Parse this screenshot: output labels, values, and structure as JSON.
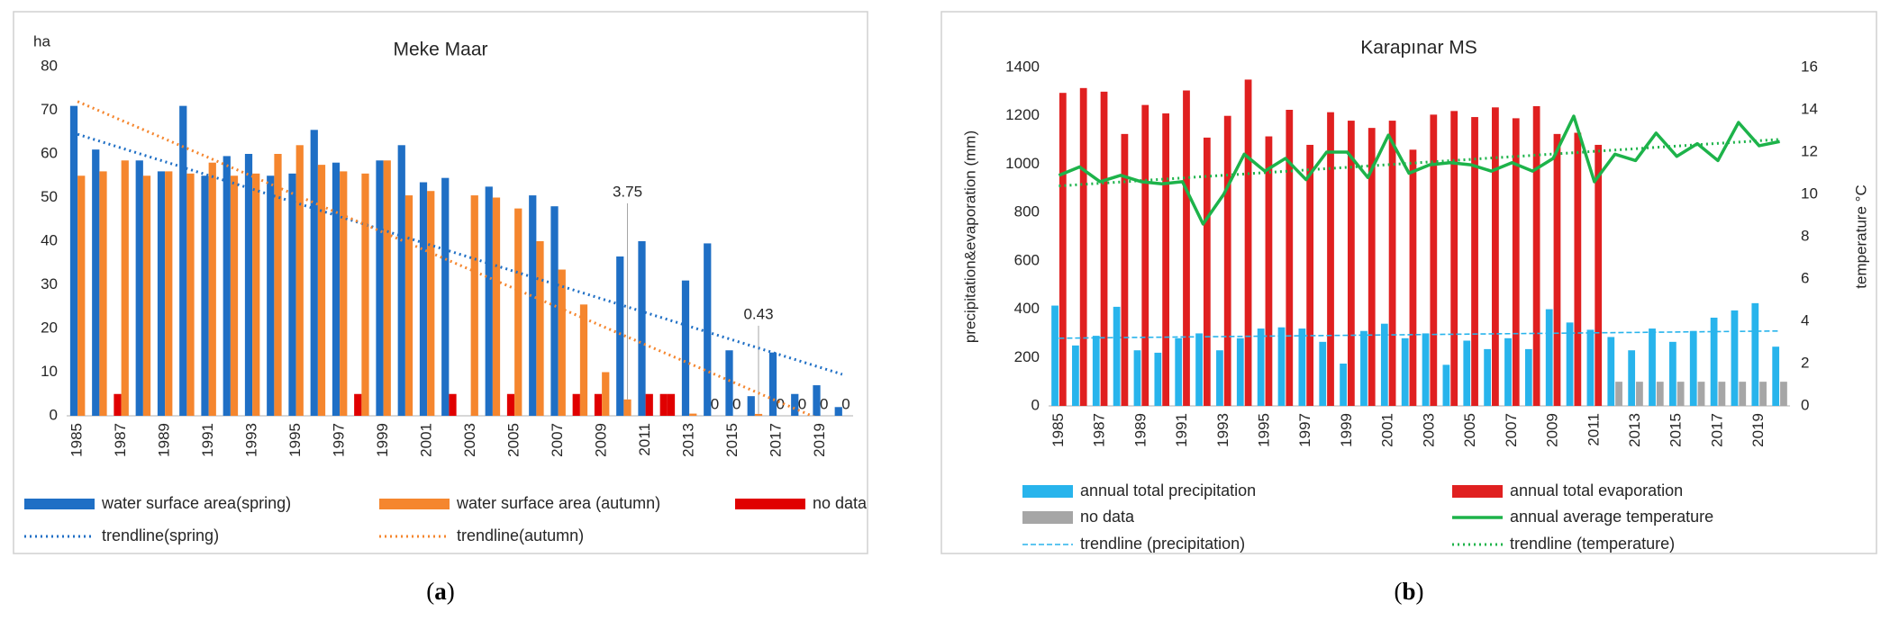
{
  "figure": {
    "captions": [
      [
        "(",
        "a",
        ")"
      ],
      [
        "(",
        "b",
        ")"
      ]
    ]
  },
  "chart_data": [
    {
      "type": "bar",
      "title": "Meke Maar",
      "y_unit": "ha",
      "categories": [
        "1985",
        null,
        "1987",
        null,
        "1989",
        null,
        "1991",
        null,
        "1993",
        null,
        "1995",
        null,
        "1997",
        null,
        "1999",
        null,
        "2001",
        null,
        "2003",
        null,
        "2005",
        null,
        "2007",
        null,
        "2009",
        null,
        "2011",
        null,
        "2013",
        null,
        "2015",
        null,
        "2017",
        null,
        "2019",
        null
      ],
      "ylim": [
        0,
        80
      ],
      "yticks": [
        0,
        10,
        20,
        30,
        40,
        50,
        60,
        70,
        80
      ],
      "series": [
        {
          "name": "water surface area(spring)",
          "type": "bar",
          "color": "#1f6fc5",
          "values": [
            71,
            61,
            null,
            58.5,
            56,
            71,
            55,
            59.5,
            60,
            55,
            55.5,
            65.5,
            58,
            null,
            58.5,
            62,
            53.5,
            54.5,
            null,
            52.5,
            null,
            50.5,
            48,
            null,
            null,
            36.5,
            40,
            null,
            31,
            39.5,
            15,
            4.5,
            14.5,
            5,
            7,
            2
          ]
        },
        {
          "name": "water surface area (autumn)",
          "type": "bar",
          "color": "#f5862e",
          "values": [
            55,
            56,
            58.5,
            55,
            56,
            55.5,
            58,
            55,
            55.5,
            60,
            62,
            57.5,
            56,
            55.5,
            58.5,
            50.5,
            51.5,
            null,
            50.5,
            50,
            47.5,
            40,
            33.5,
            25.5,
            10,
            3.75,
            null,
            null,
            0.5,
            0,
            0,
            0.43,
            0,
            0,
            0,
            0
          ],
          "value_labels": [
            null,
            null,
            null,
            null,
            null,
            null,
            null,
            null,
            null,
            null,
            null,
            null,
            null,
            null,
            null,
            null,
            null,
            null,
            null,
            null,
            null,
            null,
            null,
            null,
            null,
            "3.75",
            null,
            null,
            null,
            "0",
            "0",
            "0.43",
            "0",
            "0",
            "0",
            "0"
          ]
        },
        {
          "name": "no data",
          "type": "bar",
          "color": "#e00000",
          "fills_gaps": true,
          "values": [
            null,
            null,
            5,
            null,
            null,
            null,
            null,
            null,
            null,
            null,
            null,
            null,
            null,
            5,
            null,
            null,
            null,
            5,
            null,
            null,
            5,
            null,
            null,
            5,
            5,
            null,
            5,
            5,
            null,
            null,
            null,
            null,
            null,
            null,
            null,
            null
          ]
        }
      ],
      "trendlines": [
        {
          "name": "trendline(spring)",
          "color": "#1f6fc5",
          "style": "dotted",
          "from": 64.5,
          "to": 9.5
        },
        {
          "name": "trendline(autumn)",
          "color": "#f5862e",
          "style": "dotted",
          "from": 72,
          "to": -3
        }
      ]
    },
    {
      "type": "bar",
      "title": "Karapınar MS",
      "y_label": "precipitation&evaporation (mm)",
      "y2_label": "temperature °C",
      "categories": [
        "1985",
        null,
        "1987",
        null,
        "1989",
        null,
        "1991",
        null,
        "1993",
        null,
        "1995",
        null,
        "1997",
        null,
        "1999",
        null,
        "2001",
        null,
        "2003",
        null,
        "2005",
        null,
        "2007",
        null,
        "2009",
        null,
        "2011",
        null,
        "2013",
        null,
        "2015",
        null,
        "2017",
        null,
        "2019",
        null
      ],
      "ylim": [
        0,
        1400
      ],
      "yticks": [
        0,
        200,
        400,
        600,
        800,
        1000,
        1200,
        1400
      ],
      "y2lim": [
        0,
        16
      ],
      "y2ticks": [
        0,
        2,
        4,
        6,
        8,
        10,
        12,
        14,
        16
      ],
      "series": [
        {
          "name": "annual total precipitation",
          "type": "bar",
          "color": "#28b4ec",
          "values": [
            415,
            250,
            290,
            410,
            230,
            220,
            280,
            300,
            230,
            280,
            320,
            325,
            320,
            265,
            175,
            310,
            340,
            280,
            300,
            170,
            270,
            235,
            280,
            235,
            400,
            345,
            315,
            285,
            230,
            320,
            265,
            310,
            365,
            395,
            425,
            245
          ]
        },
        {
          "name": "annual total evaporation",
          "type": "bar",
          "color": "#e02020",
          "values": [
            1295,
            1315,
            1300,
            1125,
            1245,
            1210,
            1305,
            1110,
            1200,
            1350,
            1115,
            1225,
            1080,
            1215,
            1180,
            1150,
            1180,
            1060,
            1205,
            1220,
            1195,
            1235,
            1190,
            1240,
            1125,
            1130,
            1080,
            null,
            null,
            null,
            null,
            null,
            null,
            null,
            null,
            null
          ]
        },
        {
          "name": "no data",
          "type": "bar",
          "color": "#a6a6a6",
          "fills_gaps": true,
          "values": [
            null,
            null,
            null,
            null,
            null,
            null,
            null,
            null,
            null,
            null,
            null,
            null,
            null,
            null,
            null,
            null,
            null,
            null,
            null,
            null,
            null,
            null,
            null,
            null,
            null,
            null,
            null,
            100,
            100,
            100,
            100,
            100,
            100,
            100,
            100,
            100
          ]
        },
        {
          "name": "annual average temperature",
          "type": "line",
          "axis": "y2",
          "color": "#1db34a",
          "values": [
            10.9,
            11.3,
            10.6,
            10.9,
            10.6,
            10.5,
            10.6,
            8.6,
            10.0,
            11.9,
            11.1,
            11.7,
            10.7,
            12.0,
            12.0,
            10.8,
            12.8,
            11.0,
            11.4,
            11.5,
            11.4,
            11.1,
            11.5,
            11.1,
            11.7,
            13.7,
            10.6,
            11.9,
            11.6,
            12.9,
            11.8,
            12.4,
            11.6,
            13.4,
            12.3,
            12.5
          ]
        }
      ],
      "trendlines": [
        {
          "name": "trendline (precipitation)",
          "color": "#28b4ec",
          "style": "dashed",
          "from": 280,
          "to": 310
        },
        {
          "name": "trendline (temperature)",
          "color": "#1db34a",
          "style": "dotted",
          "axis": "y2",
          "from": 10.4,
          "to": 12.6
        }
      ]
    }
  ]
}
